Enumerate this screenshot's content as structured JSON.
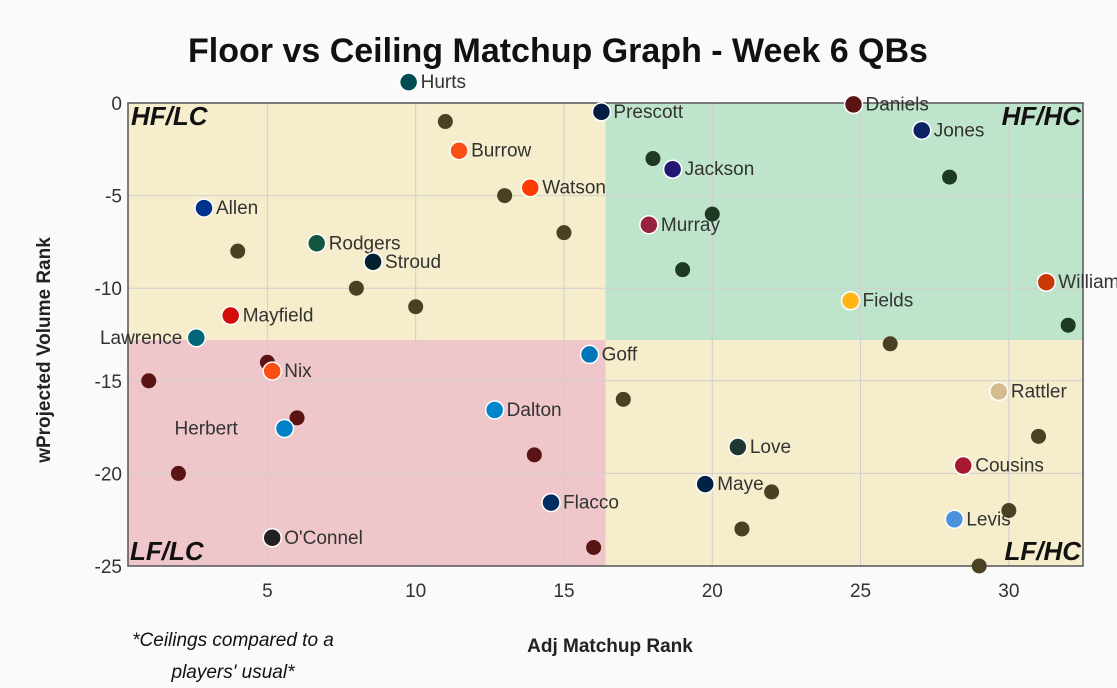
{
  "chart_data": {
    "type": "scatter",
    "title": "Floor vs Ceiling Matchup Graph - Week 6 QBs",
    "xlabel": "Adj Matchup Rank",
    "ylabel": "wProjected Volume Rank",
    "xlim": [
      0.3,
      32.5
    ],
    "ylim": [
      -25,
      0
    ],
    "xticks": [
      5,
      10,
      15,
      20,
      25,
      30
    ],
    "yticks": [
      0,
      -5,
      -10,
      -15,
      -20,
      -25
    ],
    "grid": true,
    "quadrant_split": {
      "x": 16.4,
      "y": -12.8
    },
    "quadrants": [
      {
        "label": "HF/LC",
        "position": "top-left",
        "color": "#f5edcb"
      },
      {
        "label": "HF/HC",
        "position": "top-right",
        "color": "#bfe4cc"
      },
      {
        "label": "LF/LC",
        "position": "bottom-left",
        "color": "#efc6c9"
      },
      {
        "label": "LF/HC",
        "position": "bottom-right",
        "color": "#f5edcb"
      }
    ],
    "point_colors": {
      "top-left": "#4a4024",
      "top-right": "#1e3a24",
      "bottom-left": "#5a1414",
      "bottom-right": "#4a4024"
    },
    "points": [
      {
        "x": 11,
        "y": -1,
        "label": "Hurts",
        "team": "PHI",
        "lx": 10.1,
        "ly": 0.8,
        "logo_color": "#004c54"
      },
      {
        "x": 18,
        "y": -3,
        "label": "Prescott",
        "team": "DAL",
        "lx": 16.6,
        "ly": -0.8,
        "logo_color": "#041e42"
      },
      {
        "x": 28,
        "y": -4,
        "label": "Jones",
        "team": "NYG",
        "lx": 27.4,
        "ly": -1.8,
        "logo_color": "#0b2265"
      },
      {
        "x": 13,
        "y": -5,
        "label": "Burrow",
        "team": "CIN",
        "lx": 11.8,
        "ly": -2.9,
        "logo_color": "#fb4f14"
      },
      {
        "x": 20,
        "y": -6,
        "label": "Jackson",
        "team": "BAL",
        "lx": 19.0,
        "ly": -3.9,
        "logo_color": "#241773"
      },
      {
        "x": 4,
        "y": -8,
        "label": "Allen",
        "team": "BUF",
        "lx": 3.2,
        "ly": -6.0,
        "logo_color": "#00338d"
      },
      {
        "x": 15,
        "y": -7,
        "label": "Watson",
        "team": "CLE",
        "lx": 14.2,
        "ly": -4.9,
        "logo_color": "#ff3c00"
      },
      {
        "x": 19,
        "y": -9,
        "label": "Murray",
        "team": "ARI",
        "lx": 18.2,
        "ly": -6.9,
        "logo_color": "#97233f"
      },
      {
        "x": 8,
        "y": -10,
        "label": "Rodgers",
        "team": "NYJ",
        "lx": 7.0,
        "ly": -7.9,
        "logo_color": "#125740"
      },
      {
        "x": 10,
        "y": -11,
        "label": "Stroud",
        "team": "HOU",
        "lx": 8.9,
        "ly": -8.9,
        "logo_color": "#03202f"
      },
      {
        "x": 32,
        "y": -12,
        "label": "Williams",
        "team": "CHI",
        "lx": 31.6,
        "ly": -10.0,
        "logo_color": "#c83803"
      },
      {
        "x": 26,
        "y": -13,
        "label": "Fields",
        "team": "PIT",
        "lx": 25.0,
        "ly": -11.0,
        "logo_color": "#ffb612"
      },
      {
        "x": 5,
        "y": -14,
        "label": "Mayfield",
        "team": "TB",
        "lx": 4.1,
        "ly": -11.8,
        "logo_color": "#d50a0a"
      },
      {
        "x": 1,
        "y": -15,
        "label": "Lawrence",
        "team": "JAX",
        "lx": 2.2,
        "ly": -13.0,
        "logo_color": "#006778",
        "anchor": "end"
      },
      {
        "x": 6,
        "y": -17,
        "label": "Nix",
        "team": "DEN",
        "lx": 5.5,
        "ly": -14.8,
        "logo_color": "#fb4f14"
      },
      {
        "x": 17,
        "y": -16,
        "label": "Goff",
        "team": "DET",
        "lx": 16.2,
        "ly": -13.9,
        "logo_color": "#0076b6"
      },
      {
        "x": 31,
        "y": -18,
        "label": "Rattler",
        "team": "NO",
        "lx": 30.0,
        "ly": -15.9,
        "logo_color": "#d3bc8d"
      },
      {
        "x": 14,
        "y": -19,
        "label": "Dalton",
        "team": "CAR",
        "lx": 13.0,
        "ly": -16.9,
        "logo_color": "#0085ca"
      },
      {
        "x": 2,
        "y": -20,
        "label": "Herbert",
        "team": "LAC",
        "lx": 1.8,
        "ly": -17.9,
        "logo_color": "#0080c6",
        "logo_after": true
      },
      {
        "x": 22,
        "y": -21,
        "label": "Love",
        "team": "GB",
        "lx": 21.2,
        "ly": -18.9,
        "logo_color": "#203731"
      },
      {
        "x": 30,
        "y": -22,
        "label": "Cousins",
        "team": "ATL",
        "lx": 28.8,
        "ly": -19.9,
        "logo_color": "#a71930"
      },
      {
        "x": 21,
        "y": -23,
        "label": "Maye",
        "team": "NE",
        "lx": 20.1,
        "ly": -20.9,
        "logo_color": "#002244"
      },
      {
        "x": 16,
        "y": -24,
        "label": "Flacco",
        "team": "IND",
        "lx": 14.9,
        "ly": -21.9,
        "logo_color": "#002c5f"
      },
      {
        "x": 29,
        "y": -25,
        "label": "Levis",
        "team": "TEN",
        "lx": 28.5,
        "ly": -22.8,
        "logo_color": "#4b92db"
      },
      {
        "x": 26,
        "y": 0,
        "label": "Daniels",
        "team": "WAS",
        "lx": 25.1,
        "ly": -0.4,
        "logo_color": "#5a1414",
        "no_point": true
      },
      {
        "x": 5,
        "y": -23,
        "label": "O'Connel",
        "team": "LV",
        "lx": 5.5,
        "ly": -23.8,
        "logo_color": "#222222",
        "no_point": true
      }
    ],
    "annotations": [
      "*Ceilings compared to a",
      "players' usual*"
    ]
  }
}
